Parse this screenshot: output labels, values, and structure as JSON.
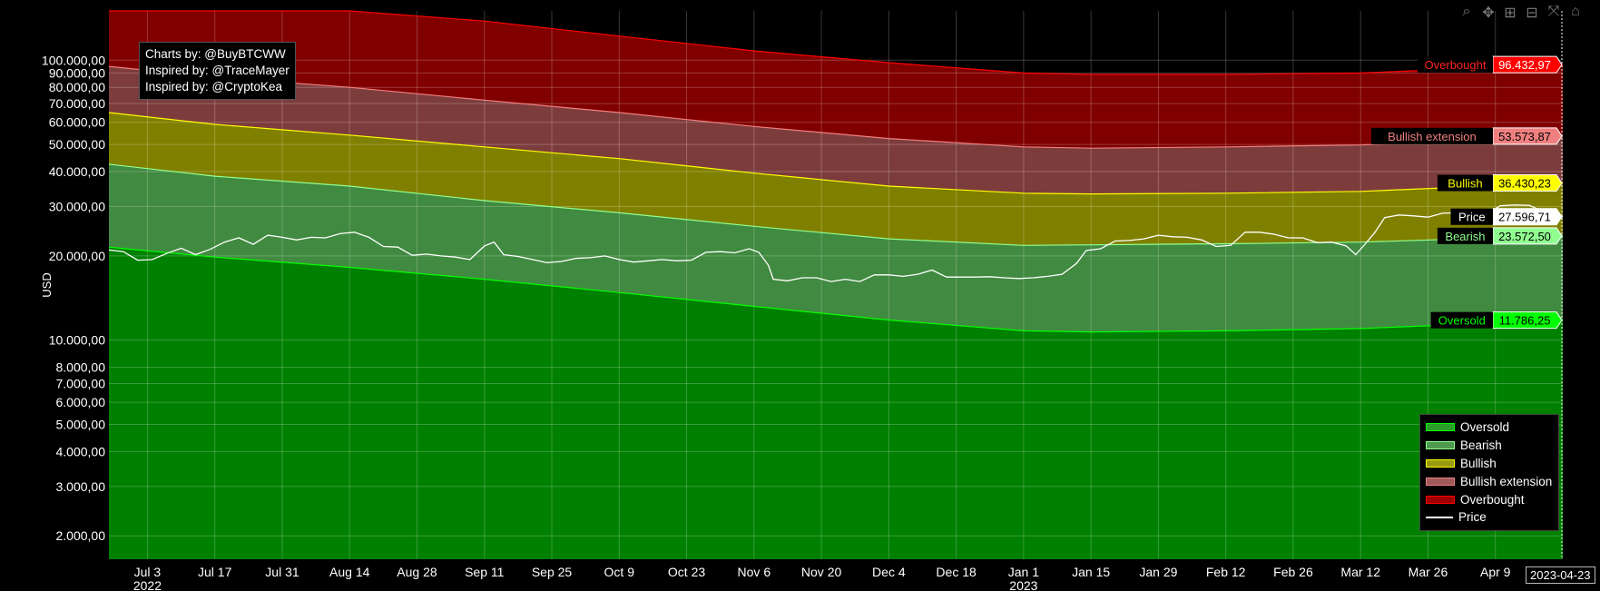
{
  "credits": [
    "Charts by: @BuyBTCWW",
    "Inspired by: @TraceMayer",
    "Inspired by: @CryptoKea"
  ],
  "modebar": [
    {
      "name": "zoom-icon",
      "glyph": "⌕"
    },
    {
      "name": "pan-icon",
      "glyph": "✥"
    },
    {
      "name": "zoom-in-icon",
      "glyph": "⊞"
    },
    {
      "name": "zoom-out-icon",
      "glyph": "⊟"
    },
    {
      "name": "autoscale-icon",
      "glyph": "⤧"
    },
    {
      "name": "home-icon",
      "glyph": "⌂"
    }
  ],
  "hover_date": "2023-04-23",
  "chart_data": {
    "type": "area",
    "ylabel": "USD",
    "y_scale": "log",
    "ylim": [
      1650,
      150000
    ],
    "xlim": [
      "2022-06-25",
      "2023-04-23"
    ],
    "y_ticks": [
      {
        "v": 2000,
        "label": "2.000,00"
      },
      {
        "v": 3000,
        "label": "3.000,00"
      },
      {
        "v": 4000,
        "label": "4.000,00"
      },
      {
        "v": 5000,
        "label": "5.000,00"
      },
      {
        "v": 6000,
        "label": "6.000,00"
      },
      {
        "v": 7000,
        "label": "7.000,00"
      },
      {
        "v": 8000,
        "label": "8.000,00"
      },
      {
        "v": 10000,
        "label": "10.000,00"
      },
      {
        "v": 20000,
        "label": "20.000,00"
      },
      {
        "v": 30000,
        "label": "30.000,00"
      },
      {
        "v": 40000,
        "label": "40.000,00"
      },
      {
        "v": 50000,
        "label": "50.000,00"
      },
      {
        "v": 60000,
        "label": "60.000,00"
      },
      {
        "v": 70000,
        "label": "70.000,00"
      },
      {
        "v": 80000,
        "label": "80.000,00"
      },
      {
        "v": 90000,
        "label": "90.000,00"
      },
      {
        "v": 100000,
        "label": "100.000,00"
      }
    ],
    "x_ticks": [
      {
        "date": "2022-07-03",
        "label": "Jul 3",
        "sub": "2022"
      },
      {
        "date": "2022-07-17",
        "label": "Jul 17"
      },
      {
        "date": "2022-07-31",
        "label": "Jul 31"
      },
      {
        "date": "2022-08-14",
        "label": "Aug 14"
      },
      {
        "date": "2022-08-28",
        "label": "Aug 28"
      },
      {
        "date": "2022-09-11",
        "label": "Sep 11"
      },
      {
        "date": "2022-09-25",
        "label": "Sep 25"
      },
      {
        "date": "2022-10-09",
        "label": "Oct 9"
      },
      {
        "date": "2022-10-23",
        "label": "Oct 23"
      },
      {
        "date": "2022-11-06",
        "label": "Nov 6"
      },
      {
        "date": "2022-11-20",
        "label": "Nov 20"
      },
      {
        "date": "2022-12-04",
        "label": "Dec 4"
      },
      {
        "date": "2022-12-18",
        "label": "Dec 18"
      },
      {
        "date": "2023-01-01",
        "label": "Jan 1",
        "sub": "2023"
      },
      {
        "date": "2023-01-15",
        "label": "Jan 15"
      },
      {
        "date": "2023-01-29",
        "label": "Jan 29"
      },
      {
        "date": "2023-02-12",
        "label": "Feb 12"
      },
      {
        "date": "2023-02-26",
        "label": "Feb 26"
      },
      {
        "date": "2023-03-12",
        "label": "Mar 12"
      },
      {
        "date": "2023-03-26",
        "label": "Mar 26"
      },
      {
        "date": "2023-04-09",
        "label": "Apr 9"
      }
    ],
    "band_x": [
      "2022-06-25",
      "2022-07-17",
      "2022-08-14",
      "2022-09-11",
      "2022-10-09",
      "2022-11-06",
      "2022-12-04",
      "2023-01-01",
      "2023-01-15",
      "2023-02-12",
      "2023-03-12",
      "2023-04-23"
    ],
    "series": [
      {
        "name": "Oversold",
        "color": "#00ff00",
        "fill": "#008000",
        "values": [
          21500,
          19800,
          18200,
          16500,
          14800,
          13200,
          11800,
          10800,
          10700,
          10800,
          11000,
          11786.25
        ],
        "last_label": "11.786,25"
      },
      {
        "name": "Bearish",
        "color": "#90ff90",
        "fill": "#418a41",
        "values": [
          42500,
          38500,
          35500,
          31500,
          28500,
          25500,
          23000,
          21800,
          21900,
          22100,
          22400,
          23572.5
        ],
        "last_label": "23.572,50"
      },
      {
        "name": "Bullish",
        "color": "#ffff00",
        "fill": "#808000",
        "values": [
          65000,
          59000,
          54000,
          49000,
          44500,
          39500,
          35500,
          33500,
          33300,
          33500,
          34000,
          36430.23
        ],
        "last_label": "36.430,23"
      },
      {
        "name": "Bullish extension",
        "color": "#f08080",
        "fill": "#7d3c3c",
        "values": [
          95000,
          87000,
          80000,
          72000,
          65000,
          58000,
          52500,
          49000,
          48500,
          49000,
          49800,
          53573.87
        ],
        "last_label": "53.573,87"
      },
      {
        "name": "Overbought",
        "color": "#ff0000",
        "fill": "#800000",
        "values": [
          158000,
          158000,
          150000,
          138000,
          122000,
          108000,
          98000,
          90000,
          89000,
          89000,
          90000,
          96432.97
        ],
        "last_label": "96.432,97"
      }
    ],
    "price": {
      "name": "Price",
      "color": "#ffffff",
      "x": [
        "2022-06-25",
        "2022-06-28",
        "2022-07-01",
        "2022-07-04",
        "2022-07-07",
        "2022-07-10",
        "2022-07-13",
        "2022-07-16",
        "2022-07-19",
        "2022-07-22",
        "2022-07-25",
        "2022-07-28",
        "2022-07-31",
        "2022-08-03",
        "2022-08-06",
        "2022-08-09",
        "2022-08-12",
        "2022-08-15",
        "2022-08-18",
        "2022-08-21",
        "2022-08-24",
        "2022-08-27",
        "2022-08-30",
        "2022-09-02",
        "2022-09-05",
        "2022-09-08",
        "2022-09-11",
        "2022-09-13",
        "2022-09-15",
        "2022-09-18",
        "2022-09-21",
        "2022-09-24",
        "2022-09-27",
        "2022-09-30",
        "2022-10-03",
        "2022-10-06",
        "2022-10-09",
        "2022-10-12",
        "2022-10-15",
        "2022-10-18",
        "2022-10-21",
        "2022-10-24",
        "2022-10-27",
        "2022-10-30",
        "2022-11-02",
        "2022-11-05",
        "2022-11-07",
        "2022-11-09",
        "2022-11-10",
        "2022-11-13",
        "2022-11-16",
        "2022-11-19",
        "2022-11-22",
        "2022-11-25",
        "2022-11-28",
        "2022-12-01",
        "2022-12-04",
        "2022-12-07",
        "2022-12-10",
        "2022-12-13",
        "2022-12-16",
        "2022-12-19",
        "2022-12-22",
        "2022-12-25",
        "2022-12-28",
        "2022-12-31",
        "2023-01-03",
        "2023-01-06",
        "2023-01-09",
        "2023-01-12",
        "2023-01-14",
        "2023-01-17",
        "2023-01-20",
        "2023-01-23",
        "2023-01-26",
        "2023-01-29",
        "2023-02-01",
        "2023-02-04",
        "2023-02-07",
        "2023-02-10",
        "2023-02-13",
        "2023-02-16",
        "2023-02-19",
        "2023-02-22",
        "2023-02-25",
        "2023-02-28",
        "2023-03-03",
        "2023-03-06",
        "2023-03-09",
        "2023-03-11",
        "2023-03-13",
        "2023-03-15",
        "2023-03-17",
        "2023-03-20",
        "2023-03-23",
        "2023-03-26",
        "2023-03-29",
        "2023-04-01",
        "2023-04-04",
        "2023-04-07",
        "2023-04-10",
        "2023-04-13",
        "2023-04-16",
        "2023-04-19",
        "2023-04-23"
      ],
      "values": [
        21000,
        20700,
        19300,
        19400,
        20400,
        21300,
        20200,
        21100,
        22400,
        23200,
        22000,
        23700,
        23300,
        22800,
        23300,
        23200,
        24000,
        24300,
        23300,
        21600,
        21500,
        20100,
        20300,
        20000,
        19800,
        19400,
        21700,
        22400,
        20200,
        19900,
        19400,
        18900,
        19100,
        19600,
        19700,
        20000,
        19400,
        19000,
        19200,
        19400,
        19200,
        19300,
        20600,
        20700,
        20500,
        21200,
        20600,
        18500,
        16500,
        16300,
        16700,
        16700,
        16200,
        16500,
        16200,
        17100,
        17100,
        16900,
        17200,
        17800,
        16800,
        16800,
        16800,
        16850,
        16700,
        16600,
        16700,
        16900,
        17200,
        18800,
        20900,
        21200,
        22600,
        22700,
        23000,
        23700,
        23400,
        23300,
        22800,
        21600,
        21800,
        24300,
        24300,
        23900,
        23200,
        23200,
        22300,
        22400,
        21700,
        20200,
        22100,
        24300,
        27400,
        28000,
        27800,
        27500,
        28400,
        28500,
        28000,
        28100,
        30200,
        30400,
        30300,
        28800,
        27596.71
      ],
      "last_label": "27.596,71"
    },
    "legend_placement": "bottom-right"
  }
}
